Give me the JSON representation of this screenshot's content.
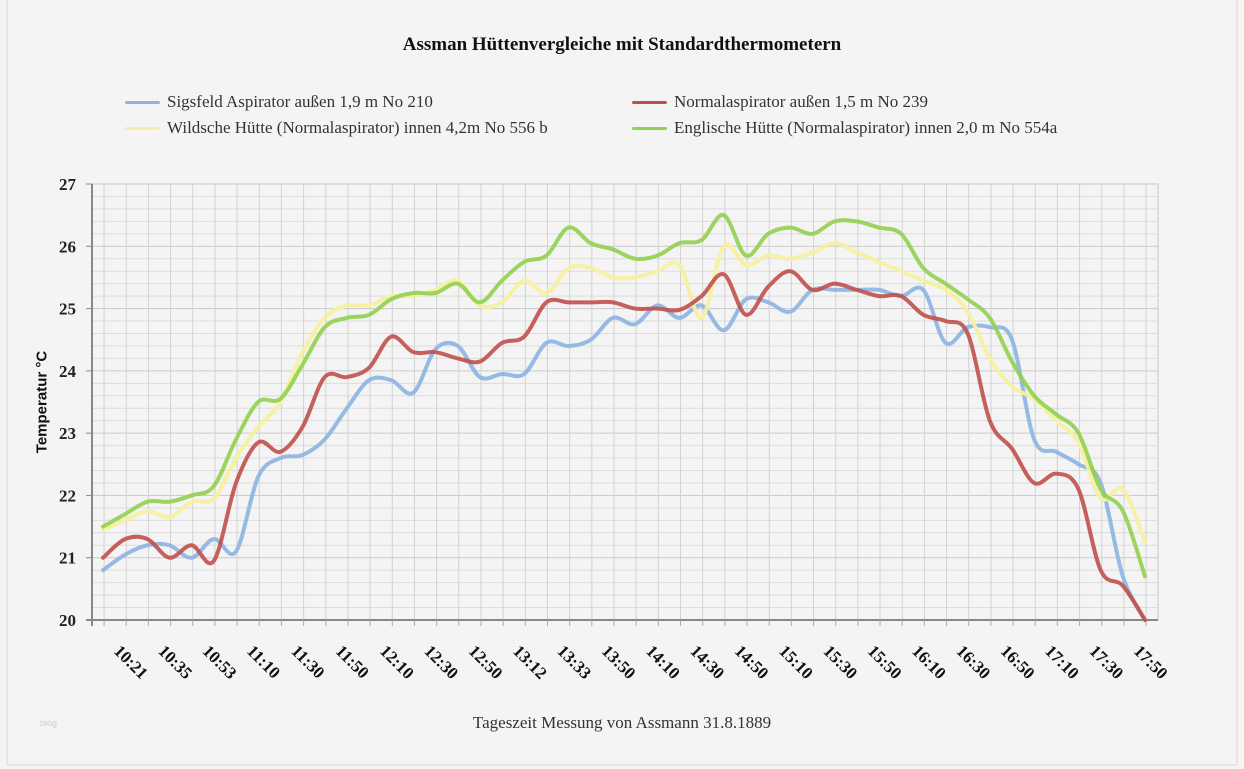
{
  "chart_data": {
    "type": "line",
    "title": "Assman Hüttenvergleiche mit Standardthermometern",
    "xlabel": "Tageszeit Messung von Assmann 31.8.1889",
    "ylabel": "Temperatur °C",
    "ylim": [
      20,
      27
    ],
    "yticks": [
      20,
      21,
      22,
      23,
      24,
      25,
      26,
      27
    ],
    "grid": true,
    "legend_position": "top",
    "x_tick_labels": [
      "10:21",
      "10:35",
      "10:53",
      "11:10",
      "11:30",
      "11:50",
      "12:10",
      "12:30",
      "12:50",
      "13:12",
      "13:33",
      "13:50",
      "14:10",
      "14:30",
      "14:50",
      "15:10",
      "15:30",
      "15:50",
      "16:10",
      "16:30",
      "16:50",
      "17:10",
      "17:30",
      "17:50"
    ],
    "n_points": 48,
    "series": [
      {
        "name": "Sigsfeld Aspirator außen 1,9 m No 210",
        "color": "#8db4e2",
        "values": [
          20.8,
          21.05,
          21.2,
          21.2,
          21.0,
          21.3,
          21.1,
          22.3,
          22.6,
          22.65,
          22.9,
          23.4,
          23.85,
          23.85,
          23.65,
          24.35,
          24.4,
          23.9,
          23.95,
          23.95,
          24.45,
          24.4,
          24.5,
          24.85,
          24.75,
          25.05,
          24.85,
          25.05,
          24.65,
          25.15,
          25.1,
          24.95,
          25.3,
          25.3,
          25.3,
          25.3,
          25.2,
          25.3,
          24.45,
          24.7,
          24.7,
          24.5,
          22.9,
          22.7,
          22.5,
          22.2,
          20.7,
          20.0
        ]
      },
      {
        "name": "Normalaspirator außen 1,5 m No 239",
        "color": "#c0504d",
        "values": [
          21.0,
          21.3,
          21.3,
          21.0,
          21.2,
          20.95,
          22.2,
          22.85,
          22.7,
          23.1,
          23.9,
          23.9,
          24.05,
          24.55,
          24.3,
          24.3,
          24.2,
          24.15,
          24.45,
          24.55,
          25.1,
          25.1,
          25.1,
          25.1,
          25.0,
          25.0,
          24.98,
          25.2,
          25.55,
          24.9,
          25.35,
          25.6,
          25.3,
          25.4,
          25.3,
          25.2,
          25.2,
          24.9,
          24.8,
          24.6,
          23.2,
          22.75,
          22.2,
          22.35,
          22.1,
          20.8,
          20.55,
          20.0
        ]
      },
      {
        "name": "Wildsche Hütte (Normalaspirator) innen 4,2m No 556 b",
        "color": "#f5f0a0",
        "values": [
          21.45,
          21.6,
          21.75,
          21.65,
          21.9,
          21.95,
          22.6,
          23.1,
          23.5,
          24.3,
          24.85,
          25.05,
          25.05,
          25.2,
          25.2,
          25.3,
          25.45,
          25.05,
          25.1,
          25.45,
          25.25,
          25.65,
          25.65,
          25.5,
          25.5,
          25.6,
          25.7,
          24.85,
          26.0,
          25.7,
          25.85,
          25.8,
          25.9,
          26.05,
          25.9,
          25.75,
          25.6,
          25.45,
          25.3,
          24.95,
          24.2,
          23.75,
          23.55,
          23.2,
          22.85,
          21.95,
          22.1,
          21.25
        ]
      },
      {
        "name": "Englische Hütte (Normalaspirator) innen 2,0 m No 554a",
        "color": "#92d050",
        "values": [
          21.5,
          21.7,
          21.9,
          21.9,
          22.0,
          22.15,
          22.9,
          23.5,
          23.55,
          24.1,
          24.7,
          24.85,
          24.9,
          25.15,
          25.25,
          25.25,
          25.4,
          25.1,
          25.45,
          25.75,
          25.85,
          26.3,
          26.05,
          25.95,
          25.8,
          25.85,
          26.05,
          26.1,
          26.5,
          25.85,
          26.2,
          26.3,
          26.2,
          26.4,
          26.4,
          26.3,
          26.2,
          25.65,
          25.4,
          25.15,
          24.85,
          24.15,
          23.6,
          23.3,
          23.0,
          22.1,
          21.75,
          20.7
        ]
      }
    ]
  },
  "legend": {
    "items": [
      {
        "label": "Sigsfeld Aspirator außen 1,9 m No 210",
        "color": "#8db4e2"
      },
      {
        "label": "Normalaspirator außen 1,5 m No 239",
        "color": "#c0504d"
      },
      {
        "label": "Wildsche Hütte (Normalaspirator) innen 4,2m No 556 b",
        "color": "#f5f0a0"
      },
      {
        "label": "Englische Hütte (Normalaspirator) innen 2,0 m No 554a",
        "color": "#92d050"
      }
    ]
  },
  "watermark": "blog"
}
